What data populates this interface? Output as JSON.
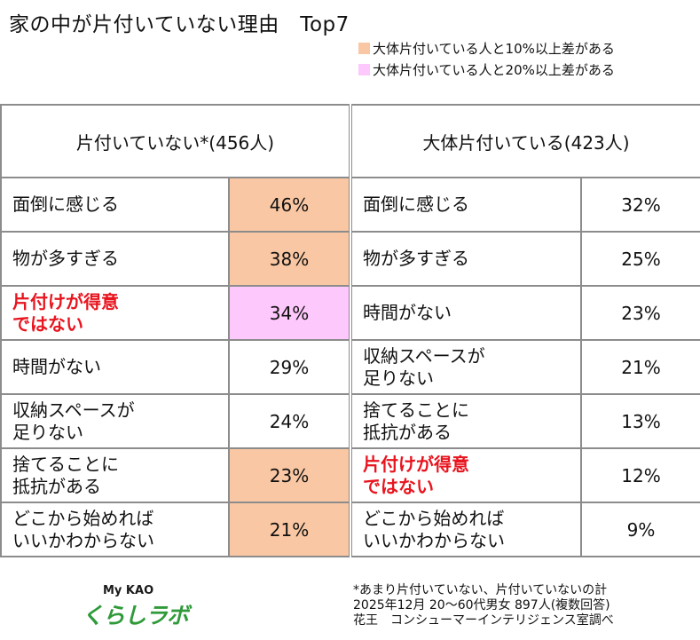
{
  "title": "家の中が片付いていない理由　Top7",
  "colors": {
    "diff10": "#f9c7a3",
    "diff20": "#fdc8fb",
    "highlight_text": "#e8141e",
    "border": "#8c8c8c",
    "logo_green": "#2f9a3a"
  },
  "legend": [
    {
      "label": "大体片付いている人と10%以上差がある",
      "color": "#f9c7a3"
    },
    {
      "label": "大体片付いている人と20%以上差がある",
      "color": "#fdc8fb"
    }
  ],
  "chart_data": {
    "type": "table",
    "groups": [
      {
        "header": "片付いていない*(456人)",
        "rows": [
          {
            "reason": "面倒に感じる",
            "value": "46%",
            "highlight": "diff10",
            "red": false
          },
          {
            "reason": "物が多すぎる",
            "value": "38%",
            "highlight": "diff10",
            "red": false
          },
          {
            "reason": "片付けが得意\nではない",
            "value": "34%",
            "highlight": "diff20",
            "red": true
          },
          {
            "reason": "時間がない",
            "value": "29%",
            "highlight": "",
            "red": false
          },
          {
            "reason": "収納スペースが\n足りない",
            "value": "24%",
            "highlight": "",
            "red": false
          },
          {
            "reason": "捨てることに\n抵抗がある",
            "value": "23%",
            "highlight": "diff10",
            "red": false
          },
          {
            "reason": "どこから始めれば\nいいかわからない",
            "value": "21%",
            "highlight": "diff10",
            "red": false
          }
        ]
      },
      {
        "header": "大体片付いている(423人)",
        "rows": [
          {
            "reason": "面倒に感じる",
            "value": "32%",
            "highlight": "",
            "red": false
          },
          {
            "reason": "物が多すぎる",
            "value": "25%",
            "highlight": "",
            "red": false
          },
          {
            "reason": "時間がない",
            "value": "23%",
            "highlight": "",
            "red": false
          },
          {
            "reason": "収納スペースが\n足りない",
            "value": "21%",
            "highlight": "",
            "red": false
          },
          {
            "reason": "捨てることに\n抵抗がある",
            "value": "13%",
            "highlight": "",
            "red": false
          },
          {
            "reason": "片付けが得意\nではない",
            "value": "12%",
            "highlight": "",
            "red": true
          },
          {
            "reason": "どこから始めれば\nいいかわからない",
            "value": "9%",
            "highlight": "",
            "red": false
          }
        ]
      }
    ]
  },
  "logo": {
    "top": "My KAO",
    "main": "くらしラボ"
  },
  "notes": [
    "*あまり片付いていない、片付いていないの計",
    "2025年12月 20～60代男女 897人(複数回答)",
    "花王　コンシューマーインテリジェンス室調べ"
  ]
}
